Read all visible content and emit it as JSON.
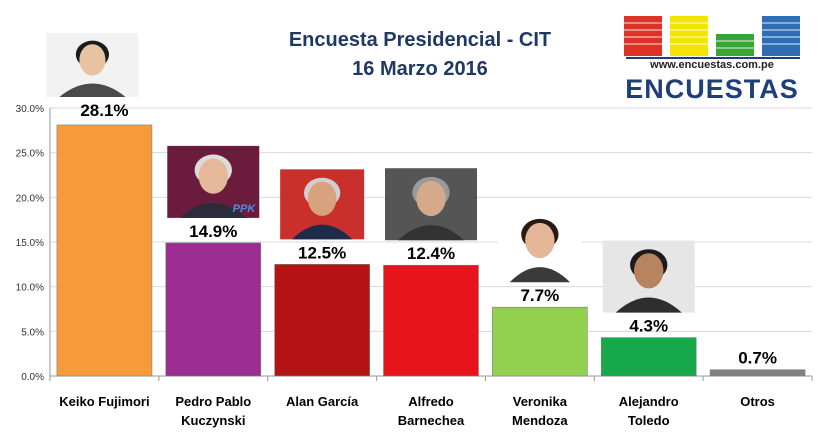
{
  "title_line1": "Encuesta Presidencial - CIT",
  "title_line2": "16 Marzo 2016",
  "logo": {
    "url_text": "www.encuestas.com.pe",
    "wordmark": "ENCUESTAS",
    "block_colors": [
      "#e03127",
      "#f2e600",
      "#3aa537",
      "#2f6eb5"
    ]
  },
  "photo_badge_text": "PPK",
  "chart_data": {
    "type": "bar",
    "categories": [
      [
        "Keiko Fujimori"
      ],
      [
        "Pedro Pablo",
        "Kuczynski"
      ],
      [
        "Alan García"
      ],
      [
        "Alfredo",
        "Barnechea"
      ],
      [
        "Veronika",
        "Mendoza"
      ],
      [
        "Alejandro",
        "Toledo"
      ],
      [
        "Otros"
      ]
    ],
    "values": [
      28.1,
      14.9,
      12.5,
      12.4,
      7.7,
      4.3,
      0.7
    ],
    "data_labels": [
      "28.1%",
      "14.9%",
      "12.5%",
      "12.4%",
      "7.7%",
      "4.3%",
      "0.7%"
    ],
    "colors": [
      "#f79a3a",
      "#9a2d8f",
      "#b31313",
      "#e8141c",
      "#92d050",
      "#18a84c",
      "#808080"
    ],
    "ylim": [
      0,
      30
    ],
    "yticks": [
      0,
      5,
      10,
      15,
      20,
      25,
      30
    ],
    "ytick_labels": [
      "0.0%",
      "5.0%",
      "10.0%",
      "15.0%",
      "20.0%",
      "25.0%",
      "30.0%"
    ],
    "grid": true,
    "xlabel": "",
    "ylabel": ""
  }
}
